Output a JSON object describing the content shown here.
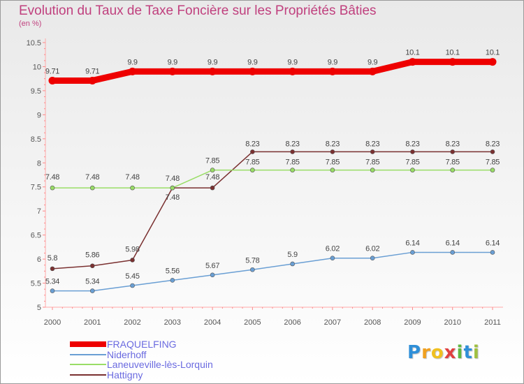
{
  "chart_data": {
    "type": "line",
    "title": "Evolution du Taux de Taxe Foncière sur les Propriétés Bâties",
    "ylabel": "(en %)",
    "xlabel": "",
    "ylim": [
      5,
      10.5
    ],
    "yticks": [
      "5",
      "5.5",
      "6",
      "6.5",
      "7",
      "7.5",
      "8",
      "8.5",
      "9",
      "9.5",
      "10",
      "10.5"
    ],
    "ytick_values": [
      5,
      5.5,
      6,
      6.5,
      7,
      7.5,
      8,
      8.5,
      9,
      9.5,
      10,
      10.5
    ],
    "categories": [
      "2000",
      "2001",
      "2002",
      "2003",
      "2004",
      "2005",
      "2006",
      "2007",
      "2008",
      "2009",
      "2010",
      "2011"
    ],
    "legend_position": "bottom-left",
    "grid": false,
    "series": [
      {
        "name": "FRAQUELFING",
        "color": "#ee0000",
        "values": [
          9.71,
          9.71,
          9.9,
          9.9,
          9.9,
          9.9,
          9.9,
          9.9,
          9.9,
          10.1,
          10.1,
          10.1
        ],
        "labels": [
          "9.71",
          "9.71",
          "9.9",
          "9.9",
          "9.9",
          "9.9",
          "9.9",
          "9.9",
          "9.9",
          "10.1",
          "10.1",
          "10.1"
        ]
      },
      {
        "name": "Niderhoff",
        "color": "#6a9fd4",
        "values": [
          5.34,
          5.34,
          5.45,
          5.56,
          5.67,
          5.78,
          5.9,
          6.02,
          6.02,
          6.14,
          6.14,
          6.14
        ],
        "labels": [
          "5.34",
          "5.34",
          "5.45",
          "5.56",
          "5.67",
          "5.78",
          "5.9",
          "6.02",
          "6.02",
          "6.14",
          "6.14",
          "6.14"
        ]
      },
      {
        "name": "Laneuveville-lès-Lorquin",
        "color": "#99dd66",
        "values": [
          7.48,
          7.48,
          7.48,
          7.48,
          7.85,
          7.85,
          7.85,
          7.85,
          7.85,
          7.85,
          7.85,
          7.85
        ],
        "labels": [
          "7.48",
          "7.48",
          "7.48",
          "7.48",
          "7.85",
          "7.85",
          "7.85",
          "7.85",
          "7.85",
          "7.85",
          "7.85",
          "7.85"
        ]
      },
      {
        "name": "Hattigny",
        "color": "#7a3030",
        "values": [
          5.8,
          5.86,
          5.98,
          7.48,
          7.48,
          8.23,
          8.23,
          8.23,
          8.23,
          8.23,
          8.23,
          8.23
        ],
        "labels": [
          "5.8",
          "5.86",
          "5.98",
          "7.48",
          "7.48",
          "8.23",
          "8.23",
          "8.23",
          "8.23",
          "8.23",
          "8.23",
          "8.23"
        ]
      }
    ]
  },
  "legend": {
    "items": [
      {
        "label": "FRAQUELFING",
        "color": "#ee0000"
      },
      {
        "label": "Niderhoff",
        "color": "#6a9fd4"
      },
      {
        "label": "Laneuveville-lès-Lorquin",
        "color": "#99dd66"
      },
      {
        "label": "Hattigny",
        "color": "#7a3030"
      }
    ]
  },
  "logo": {
    "letters": [
      "P",
      "r",
      "o",
      "x",
      "i",
      "t",
      "i"
    ],
    "colors": [
      "#2f8fd8",
      "#f0a020",
      "#f0c020",
      "#e04040",
      "#60b840",
      "#2f8fd8",
      "#a0c040"
    ]
  }
}
